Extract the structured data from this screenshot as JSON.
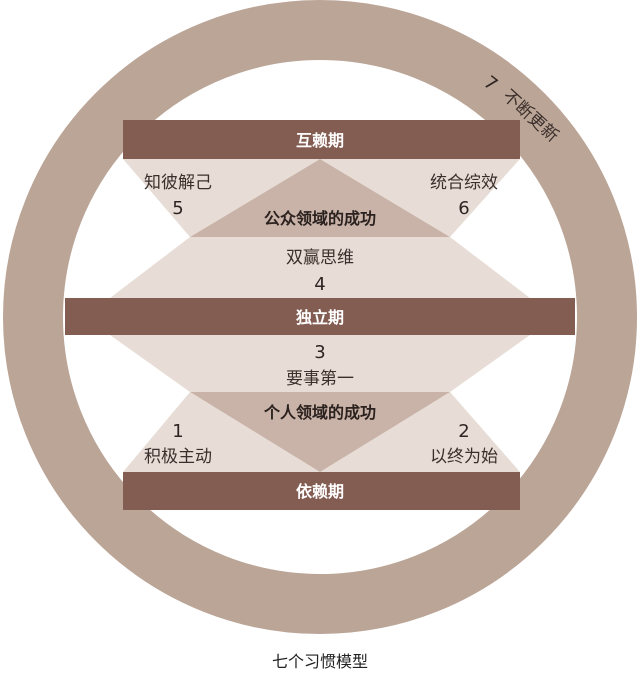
{
  "colors": {
    "ring": "#bba597",
    "bar": "#845d52",
    "panel": "#e7ddd6",
    "core": "#c9b3a8"
  },
  "diagram": {
    "renewal": {
      "number": "7",
      "label": "不断更新"
    },
    "bars": {
      "top": "互赖期",
      "middle": "独立期",
      "bottom": "依赖期"
    },
    "public_victory": "公众领域的成功",
    "private_victory": "个人领域的成功",
    "habits": [
      {
        "number": "1",
        "label": "积极主动"
      },
      {
        "number": "2",
        "label": "以终为始"
      },
      {
        "number": "3",
        "label": "要事第一"
      },
      {
        "number": "4",
        "label": "双赢思维"
      },
      {
        "number": "5",
        "label": "知彼解己"
      },
      {
        "number": "6",
        "label": "统合综效"
      }
    ]
  },
  "caption": "七个习惯模型"
}
